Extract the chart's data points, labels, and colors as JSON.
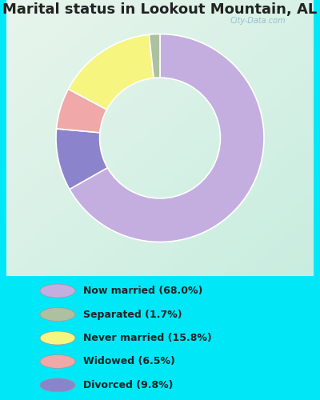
{
  "title": "Marital status in Lookout Mountain, AL",
  "slices": [
    68.0,
    9.8,
    6.5,
    15.8,
    1.7
  ],
  "colors": [
    "#c4aee0",
    "#8b84cc",
    "#f0a8a8",
    "#f5f580",
    "#adc0a0"
  ],
  "legend_labels": [
    "Now married (68.0%)",
    "Separated (1.7%)",
    "Never married (15.8%)",
    "Widowed (6.5%)",
    "Divorced (9.8%)"
  ],
  "legend_colors": [
    "#c4aee0",
    "#adc0a0",
    "#f5f580",
    "#f0a8a8",
    "#8b84cc"
  ],
  "bg_chart_top": "#e8f5ec",
  "bg_chart_bottom": "#c8ede0",
  "bg_outer_color": "#00e8f8",
  "title_fontsize": 13,
  "watermark": "City-Data.com"
}
